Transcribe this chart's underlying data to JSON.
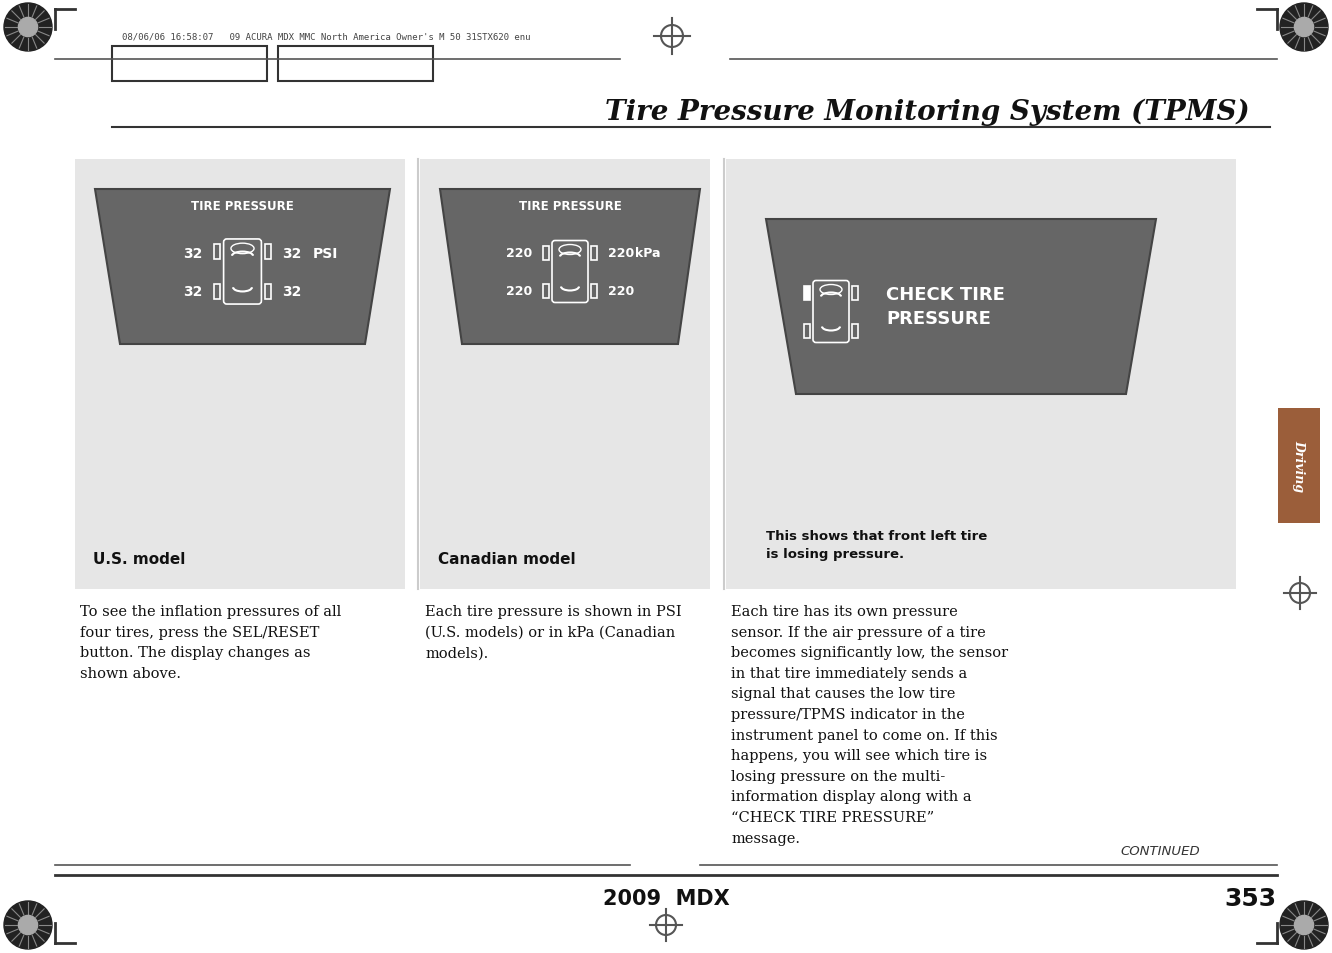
{
  "title": "Tire Pressure Monitoring System (TPMS)",
  "header_text": "08/06/06 16:58:07   09 ACURA MDX MMC North America Owner's M 50 31STX620 enu",
  "page_number": "353",
  "model_label": "2009  MDX",
  "continued_text": "CONTINUED",
  "background_color": "#ffffff",
  "panel_bg": "#e6e6e6",
  "display_bg": "#666666",
  "box1_label": "U.S. model",
  "box2_label": "Canadian model",
  "box3_label": "This shows that front left tire\nis losing pressure.",
  "box1_text": "To see the inflation pressures of all\nfour tires, press the SEL/RESET\nbutton. The display changes as\nshown above.",
  "box2_text": "Each tire pressure is shown in PSI\n(U.S. models) or in kPa (Canadian\nmodels).",
  "box3_text": "Each tire has its own pressure\nsensor. If the air pressure of a tire\nbecomes significantly low, the sensor\nin that tire immediately sends a\nsignal that causes the low tire\npressure/TPMS indicator in the\ninstrument panel to come on. If this\nhappens, you will see which tire is\nlosing pressure on the multi-\ninformation display along with a\n“CHECK TIRE PRESSURE”\nmessage.",
  "driving_label": "Driving",
  "tab_color": "#9B5E3A",
  "title_font_size": 20,
  "body_font_size": 10.5,
  "label_font_size": 11
}
